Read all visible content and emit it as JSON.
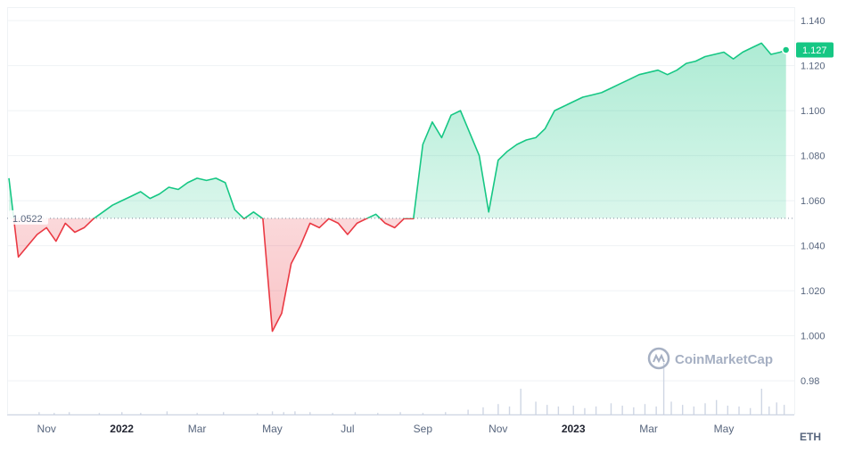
{
  "chart_data": {
    "type": "area",
    "unit_label": "ETH",
    "watermark": "CoinMarketCap",
    "baseline": {
      "label": "1.0522",
      "value": 1.0522
    },
    "current": {
      "label": "1.127",
      "value": 1.127
    },
    "ylim": [
      0.965,
      1.146
    ],
    "y_ticks": [
      {
        "value": 1.14,
        "label": "1.140"
      },
      {
        "value": 1.12,
        "label": "1.120"
      },
      {
        "value": 1.1,
        "label": "1.100"
      },
      {
        "value": 1.08,
        "label": "1.080"
      },
      {
        "value": 1.06,
        "label": "1.060"
      },
      {
        "value": 1.04,
        "label": "1.040"
      },
      {
        "value": 1.02,
        "label": "1.020"
      },
      {
        "value": 1.0,
        "label": "1.000"
      },
      {
        "value": 0.98,
        "label": "0.98"
      }
    ],
    "x_ticks": [
      {
        "label": "Nov",
        "year": false
      },
      {
        "label": "2022",
        "year": true
      },
      {
        "label": "Mar",
        "year": false
      },
      {
        "label": "May",
        "year": false
      },
      {
        "label": "Jul",
        "year": false
      },
      {
        "label": "Sep",
        "year": false
      },
      {
        "label": "Nov",
        "year": false
      },
      {
        "label": "2023",
        "year": true
      },
      {
        "label": "Mar",
        "year": false
      },
      {
        "label": "May",
        "year": false
      }
    ],
    "x_tick_months": [
      1,
      3,
      5,
      7,
      9,
      11,
      13,
      15,
      17,
      19
    ],
    "xlim_months": [
      0.0,
      20.8
    ],
    "colors": {
      "up": "#16c784",
      "down": "#ea3943",
      "grid": "#eff2f5",
      "axis": "#cfd6e4"
    },
    "series": [
      {
        "x_months": [
          0.0,
          0.25,
          0.5,
          0.75,
          1.0,
          1.25,
          1.5,
          1.75,
          2.0,
          2.25,
          2.5,
          2.75,
          3.0,
          3.25,
          3.5,
          3.75,
          4.0,
          4.25,
          4.5,
          4.75,
          5.0,
          5.25,
          5.5,
          5.75,
          6.0,
          6.25,
          6.5,
          6.75,
          7.0,
          7.25,
          7.5,
          7.75,
          8.0,
          8.25,
          8.5,
          8.75,
          9.0,
          9.25,
          9.5,
          9.75,
          10.0,
          10.25,
          10.5,
          10.75,
          11.0,
          11.25,
          11.5,
          11.75,
          12.0,
          12.25,
          12.5,
          12.75,
          13.0,
          13.25,
          13.5,
          13.75,
          14.0,
          14.25,
          14.5,
          14.75,
          15.0,
          15.25,
          15.5,
          15.75,
          16.0,
          16.25,
          16.5,
          16.75,
          17.0,
          17.25,
          17.5,
          17.75,
          18.0,
          18.25,
          18.5,
          18.75,
          19.0,
          19.25,
          19.5,
          19.75,
          20.0,
          20.25,
          20.5,
          20.65
        ],
        "values": [
          1.07,
          1.035,
          1.04,
          1.045,
          1.048,
          1.042,
          1.05,
          1.046,
          1.048,
          1.052,
          1.055,
          1.058,
          1.06,
          1.062,
          1.064,
          1.061,
          1.063,
          1.066,
          1.065,
          1.068,
          1.07,
          1.069,
          1.07,
          1.068,
          1.056,
          1.052,
          1.055,
          1.052,
          1.002,
          1.01,
          1.032,
          1.04,
          1.05,
          1.048,
          1.052,
          1.05,
          1.045,
          1.05,
          1.052,
          1.054,
          1.05,
          1.048,
          1.052,
          1.052,
          1.085,
          1.095,
          1.088,
          1.098,
          1.1,
          1.09,
          1.08,
          1.055,
          1.078,
          1.082,
          1.085,
          1.087,
          1.088,
          1.092,
          1.1,
          1.102,
          1.104,
          1.106,
          1.107,
          1.108,
          1.11,
          1.112,
          1.114,
          1.116,
          1.117,
          1.118,
          1.116,
          1.118,
          1.121,
          1.122,
          1.124,
          1.125,
          1.126,
          1.123,
          1.126,
          1.128,
          1.13,
          1.125,
          1.126,
          1.127
        ]
      }
    ],
    "volume": {
      "x_months": [
        0.8,
        1.2,
        1.6,
        2.4,
        3.0,
        3.5,
        4.2,
        5.0,
        5.7,
        6.6,
        7.0,
        7.3,
        7.6,
        8.0,
        8.6,
        9.2,
        9.8,
        10.4,
        11.0,
        11.6,
        12.2,
        12.6,
        13.0,
        13.3,
        13.6,
        14.0,
        14.3,
        14.6,
        15.0,
        15.3,
        15.6,
        16.0,
        16.3,
        16.6,
        16.9,
        17.2,
        17.4,
        17.6,
        17.9,
        18.2,
        18.5,
        18.8,
        19.1,
        19.4,
        19.7,
        20.0,
        20.2,
        20.4,
        20.6
      ],
      "values": [
        0.3,
        0.2,
        0.3,
        0.2,
        0.3,
        0.2,
        0.4,
        0.2,
        0.3,
        0.2,
        0.4,
        0.3,
        0.4,
        0.3,
        0.2,
        0.3,
        0.2,
        0.3,
        0.2,
        0.3,
        0.6,
        0.9,
        1.3,
        1.0,
        3.2,
        1.6,
        1.2,
        1.0,
        1.1,
        0.8,
        1.0,
        1.4,
        1.1,
        0.9,
        1.3,
        1.0,
        6.4,
        1.6,
        1.2,
        1.0,
        1.4,
        1.8,
        1.1,
        1.0,
        0.8,
        3.2,
        1.0,
        1.5,
        1.2
      ]
    }
  }
}
